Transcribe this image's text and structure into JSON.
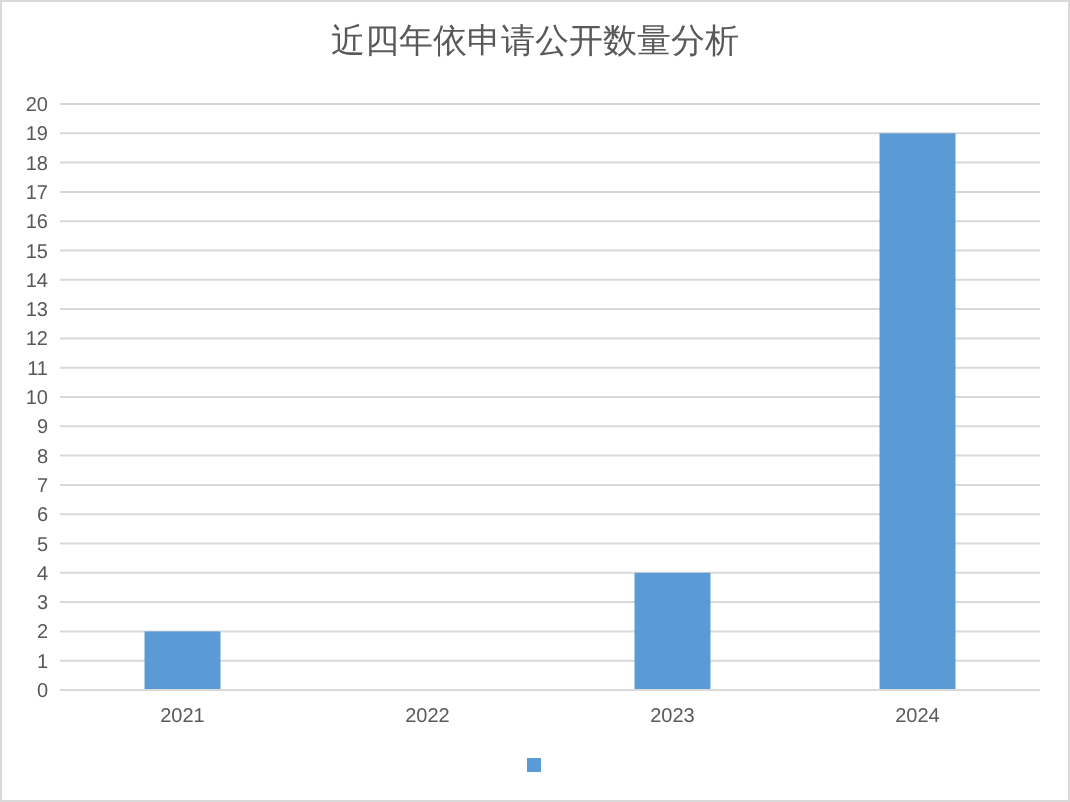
{
  "chart_data": {
    "type": "bar",
    "title": "近四年依申请公开数量分析",
    "categories": [
      "2021",
      "2022",
      "2023",
      "2024"
    ],
    "series": [
      {
        "color": "#5b9bd5",
        "values": [
          2,
          0,
          4,
          19
        ]
      }
    ],
    "ylim": [
      0,
      20
    ],
    "yticks": [
      0,
      1,
      2,
      3,
      4,
      5,
      6,
      7,
      8,
      9,
      10,
      11,
      12,
      13,
      14,
      15,
      16,
      17,
      18,
      19,
      20
    ],
    "grid": "y"
  }
}
